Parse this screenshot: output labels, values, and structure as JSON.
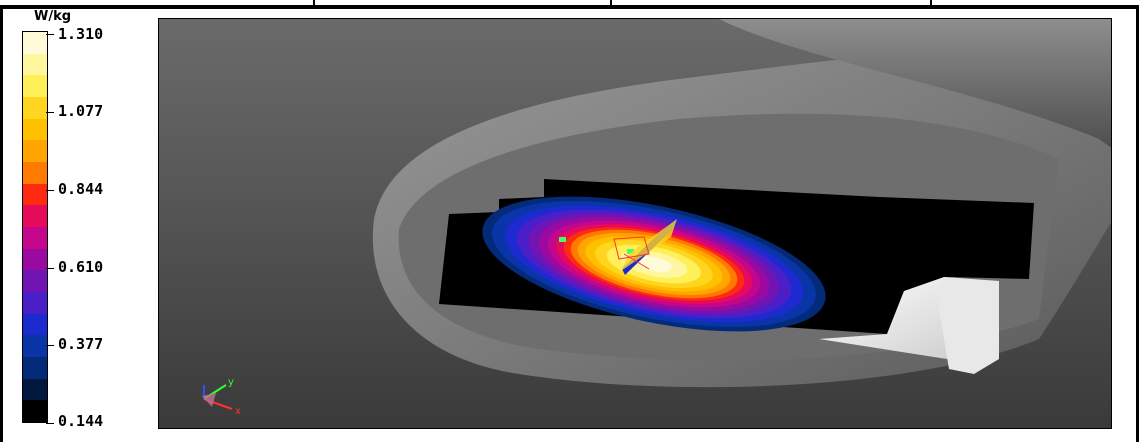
{
  "legend": {
    "unit": "W/kg",
    "ticks": [
      "1.310",
      "1.077",
      "0.844",
      "0.610",
      "0.377",
      "0.144"
    ],
    "colors": [
      "#000000",
      "#02183f",
      "#042a7a",
      "#0a35a8",
      "#1c2ad0",
      "#4a1fc8",
      "#7014b4",
      "#9a0aa0",
      "#c4078a",
      "#e60a5a",
      "#ff2a10",
      "#ff7a00",
      "#ffa400",
      "#ffc000",
      "#ffd520",
      "#fff05a",
      "#fff7a0",
      "#fffbd8"
    ]
  },
  "viewport": {
    "axis_x": "x",
    "axis_y": "y"
  }
}
